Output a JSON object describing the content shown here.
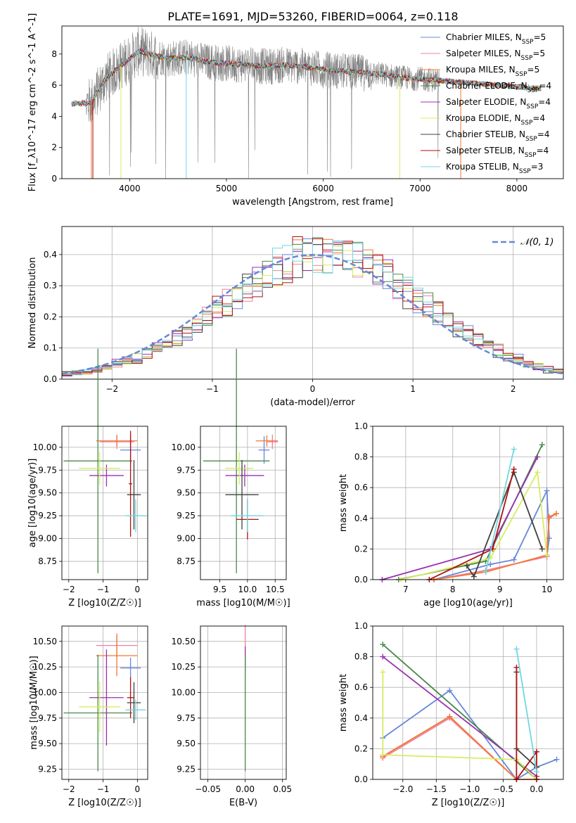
{
  "title": "PLATE=1691, MJD=53260, FIBERID=0064, z=0.118",
  "colors": {
    "Chabrier MILES": "#6688d8",
    "Salpeter MILES": "#f080a0",
    "Kroupa MILES": "#f07830",
    "Chabrier ELODIE": "#4a8a4a",
    "Salpeter ELODIE": "#9a30b0",
    "Kroupa ELODIE": "#d8ec60",
    "Chabrier STELIB": "#404040",
    "Salpeter STELIB": "#b01010",
    "Kroupa STELIB": "#70d8e0",
    "data": "#808080",
    "gauss": "#6688d8"
  },
  "chart_data": [
    {
      "type": "line",
      "name": "spectrum",
      "xlabel": "wavelength [Angstrom, rest frame]",
      "ylabel": "Flux [f_λ10^-17 erg cm^-2 s^-1 A^-1]",
      "xlim": [
        3300,
        8480
      ],
      "ylim": [
        0,
        9.8
      ],
      "xticks": [
        4000,
        5000,
        6000,
        7000,
        8000
      ],
      "yticks": [
        0,
        2,
        4,
        6,
        8
      ],
      "continuum_x": [
        3400,
        3600,
        3750,
        3900,
        4000,
        4100,
        4200,
        4400,
        4600,
        4800,
        5000,
        5200,
        5400,
        5600,
        5800,
        6000,
        6200,
        6400,
        6600,
        6800,
        7000,
        7200,
        7400,
        7600,
        7800,
        8000,
        8200,
        8250
      ],
      "continuum_y": [
        4.8,
        4.9,
        6.4,
        7.2,
        7.7,
        8.2,
        8.0,
        7.7,
        7.8,
        7.5,
        7.4,
        7.3,
        7.2,
        7.3,
        7.2,
        7.0,
        6.9,
        6.8,
        6.7,
        6.5,
        6.4,
        6.3,
        6.2,
        6.1,
        6.0,
        5.9,
        5.8,
        5.8
      ],
      "legend": [
        "Chabrier MILES, N_SSP=5",
        "Salpeter MILES, N_SSP=5",
        "Kroupa MILES, N_SSP=5",
        "Chabrier ELODIE, N_SSP=4",
        "Salpeter ELODIE, N_SSP=4",
        "Kroupa ELODIE, N_SSP=4",
        "Chabrier STELIB, N_SSP=4",
        "Salpeter STELIB, N_SSP=4",
        "Kroupa STELIB, N_SSP=3"
      ]
    },
    {
      "type": "line",
      "name": "residual-histogram",
      "xlabel": "(data-model)/error",
      "ylabel": "Normed distribution",
      "xlim": [
        -2.5,
        2.5
      ],
      "ylim": [
        0,
        0.49
      ],
      "xticks": [
        -2,
        -1,
        0,
        1,
        2
      ],
      "yticks": [
        0.0,
        0.1,
        0.2,
        0.3,
        0.4
      ],
      "legend": [
        "N(0,1)"
      ]
    },
    {
      "type": "scatter",
      "name": "age-vs-Z",
      "xlabel": "Z [log10(Z/Z☉)]",
      "ylabel": "age  [log10(age/yr)]",
      "xlim": [
        -2.2,
        0.3
      ],
      "ylim": [
        8.55,
        10.23
      ],
      "xticks": [
        -2,
        -1,
        0
      ],
      "yticks": [
        8.75,
        9.0,
        9.25,
        9.5,
        9.75,
        10.0
      ],
      "points": [
        {
          "model": "Chabrier MILES",
          "x": -0.2,
          "y": 9.97,
          "xerr": 0.3,
          "yerr": 0.15
        },
        {
          "model": "Salpeter MILES",
          "x": -0.6,
          "y": 10.06,
          "xerr": 0.5,
          "yerr": 0.08
        },
        {
          "model": "Kroupa MILES",
          "x": -0.6,
          "y": 10.07,
          "xerr": 0.6,
          "yerr": 0.06
        },
        {
          "model": "Chabrier ELODIE",
          "x": -1.15,
          "y": 9.85,
          "xerr": 1.0,
          "yerr": 1.23
        },
        {
          "model": "Salpeter ELODIE",
          "x": -0.9,
          "y": 9.69,
          "xerr": 0.5,
          "yerr": 0.12
        },
        {
          "model": "Kroupa ELODIE",
          "x": -1.1,
          "y": 9.77,
          "xerr": 0.6,
          "yerr": 0.18
        },
        {
          "model": "Chabrier STELIB",
          "x": -0.1,
          "y": 9.48,
          "xerr": 0.2,
          "yerr": 0.38
        },
        {
          "model": "Salpeter STELIB",
          "x": -0.2,
          "y": 9.6,
          "xerr": 0.05,
          "yerr": 0.58
        },
        {
          "model": "Kroupa STELIB",
          "x": -0.05,
          "y": 9.25,
          "xerr": 0.3,
          "yerr": 0.18
        }
      ]
    },
    {
      "type": "scatter",
      "name": "age-vs-mass",
      "xlabel": "mass [log10(M/M☉)]",
      "ylabel": "",
      "xlim": [
        9.15,
        10.7
      ],
      "ylim": [
        8.55,
        10.23
      ],
      "xticks": [
        9.5,
        10.0,
        10.5
      ],
      "yticks": [
        8.75,
        9.0,
        9.25,
        9.5,
        9.75,
        10.0
      ],
      "points": [
        {
          "model": "Chabrier MILES",
          "x": 10.3,
          "y": 9.97,
          "xerr": 0.1,
          "yerr": 0.15
        },
        {
          "model": "Salpeter MILES",
          "x": 10.45,
          "y": 10.06,
          "xerr": 0.1,
          "yerr": 0.08
        },
        {
          "model": "Kroupa MILES",
          "x": 10.35,
          "y": 10.07,
          "xerr": 0.2,
          "yerr": 0.06
        },
        {
          "model": "Chabrier ELODIE",
          "x": 9.8,
          "y": 9.85,
          "xerr": 0.6,
          "yerr": 1.23
        },
        {
          "model": "Salpeter ELODIE",
          "x": 9.95,
          "y": 9.69,
          "xerr": 0.35,
          "yerr": 0.12
        },
        {
          "model": "Kroupa ELODIE",
          "x": 9.85,
          "y": 9.77,
          "xerr": 0.25,
          "yerr": 0.18
        },
        {
          "model": "Chabrier STELIB",
          "x": 9.9,
          "y": 9.48,
          "xerr": 0.3,
          "yerr": 0.38
        },
        {
          "model": "Salpeter STELIB",
          "x": 10.0,
          "y": 9.21,
          "xerr": 0.2,
          "yerr": 0.22
        },
        {
          "model": "Kroupa STELIB",
          "x": 10.0,
          "y": 9.25,
          "xerr": 0.3,
          "yerr": 0.18
        }
      ]
    },
    {
      "type": "line",
      "name": "mass-weight-vs-age",
      "xlabel": "age  [log10(age/yr)]",
      "ylabel": "mass weight",
      "xlim": [
        6.3,
        10.35
      ],
      "ylim": [
        0,
        1.0
      ],
      "xticks": [
        7,
        8,
        9,
        10
      ],
      "yticks": [
        0.0,
        0.2,
        0.4,
        0.6,
        0.8,
        1.0
      ],
      "series": [
        {
          "model": "Chabrier MILES",
          "x": [
            7.6,
            8.8,
            9.3,
            10.0,
            10.05,
            10.0
          ],
          "y": [
            0.0,
            0.1,
            0.13,
            0.58,
            0.27,
            0.15
          ]
        },
        {
          "model": "Salpeter MILES",
          "x": [
            7.6,
            8.7,
            10.0,
            10.05,
            10.2
          ],
          "y": [
            0.0,
            0.06,
            0.15,
            0.4,
            0.43
          ]
        },
        {
          "model": "Kroupa MILES",
          "x": [
            7.6,
            8.7,
            10.0,
            10.05,
            10.2
          ],
          "y": [
            0.0,
            0.05,
            0.16,
            0.41,
            0.43
          ]
        },
        {
          "model": "Chabrier ELODIE",
          "x": [
            6.85,
            8.7,
            9.9
          ],
          "y": [
            0.0,
            0.12,
            0.88
          ]
        },
        {
          "model": "Salpeter ELODIE",
          "x": [
            6.5,
            8.8,
            9.8
          ],
          "y": [
            0.0,
            0.2,
            0.8
          ]
        },
        {
          "model": "Kroupa ELODIE",
          "x": [
            6.9,
            8.8,
            9.8,
            10.0
          ],
          "y": [
            0.0,
            0.14,
            0.7,
            0.16
          ]
        },
        {
          "model": "Chabrier STELIB",
          "x": [
            8.3,
            8.45,
            9.3,
            9.9
          ],
          "y": [
            0.09,
            0.02,
            0.7,
            0.2
          ]
        },
        {
          "model": "Salpeter STELIB",
          "x": [
            7.5,
            8.85,
            9.3
          ],
          "y": [
            0.0,
            0.2,
            0.72
          ]
        },
        {
          "model": "Kroupa STELIB",
          "x": [
            8.7,
            9.3
          ],
          "y": [
            0.05,
            0.85
          ]
        }
      ]
    },
    {
      "type": "scatter",
      "name": "mass-vs-Z",
      "xlabel": "Z [log10(Z/Z☉)]",
      "ylabel": "mass [log10(M/M☉)]",
      "xlim": [
        -2.2,
        0.3
      ],
      "ylim": [
        9.15,
        10.65
      ],
      "xticks": [
        -2,
        -1,
        0
      ],
      "yticks": [
        9.25,
        9.5,
        9.75,
        10.0,
        10.25,
        10.5
      ],
      "points": [
        {
          "model": "Chabrier MILES",
          "x": -0.2,
          "y": 10.24,
          "xerr": 0.3,
          "yerr": 0.1
        },
        {
          "model": "Salpeter MILES",
          "x": -0.6,
          "y": 10.46,
          "xerr": 0.6,
          "yerr": 0.12
        },
        {
          "model": "Kroupa MILES",
          "x": -0.6,
          "y": 10.36,
          "xerr": 0.6,
          "yerr": 0.2
        },
        {
          "model": "Chabrier ELODIE",
          "x": -1.15,
          "y": 9.8,
          "xerr": 1.0,
          "yerr": 0.57
        },
        {
          "model": "Salpeter ELODIE",
          "x": -0.9,
          "y": 9.95,
          "xerr": 0.5,
          "yerr": 0.47
        },
        {
          "model": "Kroupa ELODIE",
          "x": -1.1,
          "y": 9.86,
          "xerr": 0.6,
          "yerr": 0.25
        },
        {
          "model": "Chabrier STELIB",
          "x": -0.1,
          "y": 9.9,
          "xerr": 0.2,
          "yerr": 0.2
        },
        {
          "model": "Salpeter STELIB",
          "x": -0.2,
          "y": 9.95,
          "xerr": 0.1,
          "yerr": 0.2
        },
        {
          "model": "Kroupa STELIB",
          "x": -0.05,
          "y": 9.83,
          "xerr": 0.3,
          "yerr": 0.1
        }
      ]
    },
    {
      "type": "scatter",
      "name": "mass-vs-EBV",
      "xlabel": "E(B-V)",
      "ylabel": "",
      "xlim": [
        -0.06,
        0.055
      ],
      "ylim": [
        9.15,
        10.65
      ],
      "xticks": [
        -0.05,
        0.0,
        0.05
      ],
      "yticks": [
        9.25,
        9.5,
        9.75,
        10.0,
        10.25,
        10.5
      ],
      "points": [
        {
          "model": "Salpeter MILES",
          "x": 0.0,
          "y": 10.46,
          "xerr": 0,
          "yerr": 0.2
        },
        {
          "model": "Salpeter ELODIE",
          "x": 0.0,
          "y": 10.3,
          "xerr": 0,
          "yerr": 0.15
        },
        {
          "model": "Kroupa ELODIE",
          "x": 0.0,
          "y": 9.9,
          "xerr": 0,
          "yerr": 0.3
        },
        {
          "model": "Chabrier ELODIE",
          "x": 0.0,
          "y": 9.8,
          "xerr": 0,
          "yerr": 0.57
        }
      ]
    },
    {
      "type": "line",
      "name": "mass-weight-vs-Z",
      "xlabel": "Z [log10(Z/Z☉)]",
      "ylabel": "mass weight",
      "xlim": [
        -2.45,
        0.4
      ],
      "ylim": [
        0,
        1.0
      ],
      "xticks": [
        -2.0,
        -1.5,
        -1.0,
        -0.5,
        0.0
      ],
      "yticks": [
        0.0,
        0.2,
        0.4,
        0.6,
        0.8,
        1.0
      ],
      "series": [
        {
          "model": "Chabrier MILES",
          "x": [
            -2.3,
            -1.3,
            -0.3,
            0.0,
            0.3
          ],
          "y": [
            0.27,
            0.58,
            0.0,
            0.08,
            0.13
          ]
        },
        {
          "model": "Salpeter MILES",
          "x": [
            -2.3,
            -1.3,
            -0.3,
            0.0
          ],
          "y": [
            0.14,
            0.4,
            0.0,
            0.0
          ]
        },
        {
          "model": "Kroupa MILES",
          "x": [
            -2.3,
            -1.3,
            -0.3,
            0.0
          ],
          "y": [
            0.15,
            0.41,
            0.0,
            0.0
          ]
        },
        {
          "model": "Chabrier ELODIE",
          "x": [
            -2.3,
            0.0
          ],
          "y": [
            0.88,
            0.0
          ]
        },
        {
          "model": "Salpeter ELODIE",
          "x": [
            -2.3,
            0.0
          ],
          "y": [
            0.8,
            0.02
          ]
        },
        {
          "model": "Kroupa ELODIE",
          "x": [
            -2.3,
            -2.3,
            -0.3,
            0.0
          ],
          "y": [
            0.7,
            0.16,
            0.13,
            0.0
          ]
        },
        {
          "model": "Chabrier STELIB",
          "x": [
            -0.3,
            -0.3,
            0.0
          ],
          "y": [
            0.7,
            0.2,
            0.08
          ]
        },
        {
          "model": "Salpeter STELIB",
          "x": [
            -0.3,
            -0.3,
            0.0,
            0.0
          ],
          "y": [
            0.73,
            0.0,
            0.18,
            0.0
          ]
        },
        {
          "model": "Kroupa STELIB",
          "x": [
            -0.3,
            0.0
          ],
          "y": [
            0.85,
            0.05
          ]
        }
      ]
    }
  ]
}
